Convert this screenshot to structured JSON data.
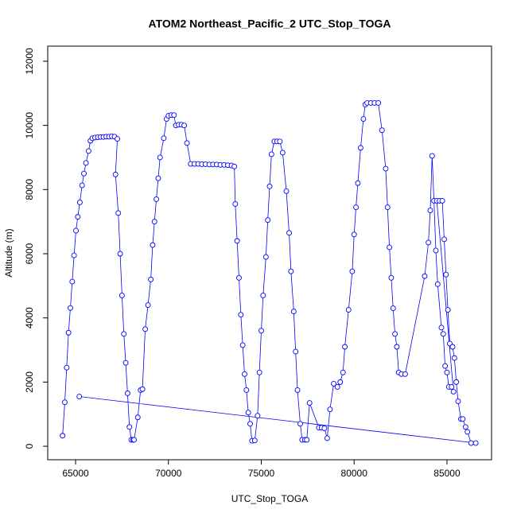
{
  "chart_data": {
    "type": "line",
    "title": "ATOM2 Northeast_Pacific_2 UTC_Stop_TOGA",
    "x_label": "UTC_Stop_TOGA",
    "y_label": "Altitude (m)",
    "color": "#0000ff",
    "xlim": [
      63500,
      87400
    ],
    "ylim": [
      -420,
      12470
    ],
    "xticks": [
      65000,
      70000,
      75000,
      80000,
      85000
    ],
    "yticks": [
      0,
      2000,
      4000,
      6000,
      8000,
      10000,
      12000
    ],
    "x": [
      64300,
      64420,
      64520,
      64620,
      64720,
      64820,
      64920,
      65020,
      65120,
      65230,
      65350,
      65450,
      65560,
      65700,
      65800,
      65900,
      66050,
      66200,
      66350,
      66500,
      66650,
      66800,
      66950,
      67100,
      67250,
      67150,
      67300,
      67400,
      67500,
      67600,
      67700,
      67800,
      67900,
      68000,
      68100,
      68150,
      68350,
      68500,
      68600,
      68750,
      68900,
      69050,
      69150,
      69250,
      69350,
      69450,
      69550,
      69750,
      69900,
      70000,
      70150,
      70300,
      70400,
      70550,
      70700,
      70850,
      71000,
      71200,
      71400,
      71600,
      71800,
      72000,
      72200,
      72400,
      72600,
      72800,
      73000,
      73200,
      73400,
      73550,
      73600,
      73700,
      73800,
      73900,
      74000,
      74100,
      74200,
      74300,
      74400,
      74500,
      74650,
      74800,
      74900,
      75000,
      75100,
      75250,
      75350,
      75450,
      75550,
      75700,
      75850,
      76000,
      76150,
      76350,
      76500,
      76600,
      76750,
      76850,
      76950,
      77100,
      77200,
      77350,
      77450,
      77600,
      78100,
      78250,
      78400,
      78550,
      78700,
      78900,
      79100,
      79250,
      79400,
      79500,
      79700,
      79900,
      80000,
      80100,
      80200,
      80350,
      80500,
      80600,
      80700,
      80900,
      81100,
      81300,
      81500,
      81700,
      81800,
      81900,
      82000,
      82100,
      82200,
      82300,
      82400,
      82550,
      82750,
      83800,
      84000,
      84100,
      84200,
      84300,
      84400,
      84500,
      84700,
      84800,
      84900,
      85000,
      85100,
      85250,
      85350,
      84450,
      84600,
      84750,
      84850,
      84950,
      85050,
      85150,
      85300,
      85400,
      85500,
      85600,
      85750,
      85850,
      86000,
      86100,
      86300,
      86550,
      65200
    ],
    "values": [
      330,
      1370,
      2450,
      3540,
      4310,
      5130,
      5950,
      6720,
      7150,
      7600,
      8130,
      8500,
      8830,
      9200,
      9520,
      9600,
      9620,
      9630,
      9640,
      9640,
      9650,
      9650,
      9660,
      9650,
      9580,
      8470,
      7270,
      6000,
      4700,
      3500,
      2600,
      1650,
      600,
      200,
      200,
      200,
      900,
      1750,
      1780,
      3650,
      4400,
      5200,
      6270,
      7000,
      7700,
      8350,
      9000,
      9600,
      10200,
      10300,
      10320,
      10320,
      10000,
      10020,
      10020,
      10000,
      9450,
      8800,
      8800,
      8800,
      8790,
      8790,
      8780,
      8780,
      8780,
      8770,
      8770,
      8760,
      8750,
      8720,
      7550,
      6400,
      5250,
      4100,
      3150,
      2250,
      1750,
      1050,
      700,
      170,
      180,
      950,
      2300,
      3600,
      4700,
      5900,
      7050,
      8100,
      9100,
      9500,
      9500,
      9500,
      9150,
      7950,
      6650,
      5450,
      4200,
      2950,
      1750,
      700,
      200,
      200,
      200,
      1350,
      580,
      580,
      560,
      250,
      1150,
      1950,
      1850,
      2000,
      2300,
      3100,
      4250,
      5450,
      6600,
      7450,
      8200,
      9300,
      10200,
      10650,
      10700,
      10700,
      10700,
      10700,
      9850,
      8650,
      7450,
      6200,
      5250,
      4300,
      3500,
      3100,
      2300,
      2250,
      2250,
      5300,
      6350,
      7350,
      9050,
      7650,
      6100,
      5050,
      3700,
      3500,
      2500,
      2300,
      1850,
      1850,
      1700,
      7650,
      7650,
      7650,
      6450,
      5350,
      4250,
      3200,
      3100,
      2750,
      2000,
      1400,
      850,
      850,
      600,
      450,
      100,
      100,
      1550
    ]
  }
}
